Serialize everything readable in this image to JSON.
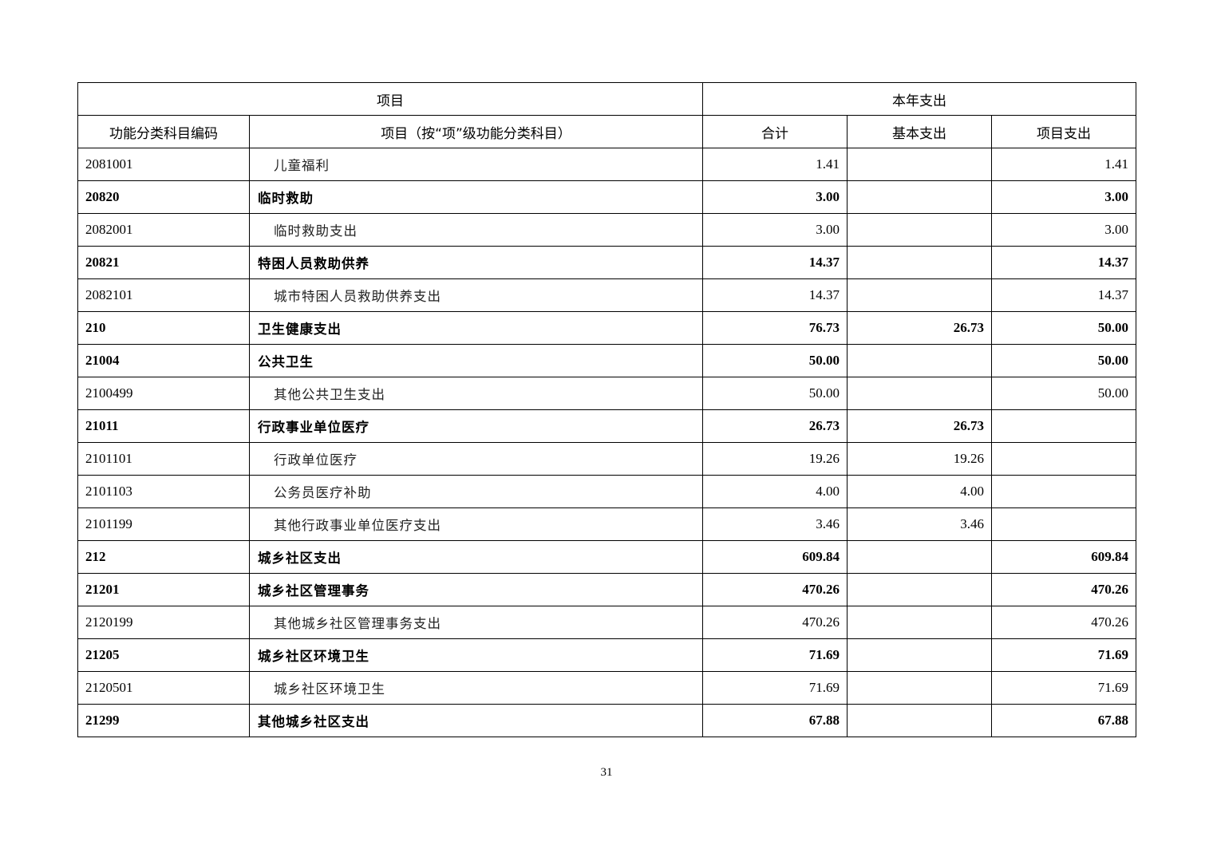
{
  "header": {
    "group_item": "项目",
    "group_expense": "本年支出",
    "col_code": "功能分类科目编码",
    "col_name": "项目（按“项”级功能分类科目）",
    "col_total": "合计",
    "col_basic": "基本支出",
    "col_project": "项目支出"
  },
  "rows": [
    {
      "code": "2081001",
      "name": "儿童福利",
      "total": "1.41",
      "basic": "",
      "project": "1.41",
      "bold": false
    },
    {
      "code": "20820",
      "name": "临时救助",
      "total": "3.00",
      "basic": "",
      "project": "3.00",
      "bold": true
    },
    {
      "code": "2082001",
      "name": "临时救助支出",
      "total": "3.00",
      "basic": "",
      "project": "3.00",
      "bold": false
    },
    {
      "code": "20821",
      "name": "特困人员救助供养",
      "total": "14.37",
      "basic": "",
      "project": "14.37",
      "bold": true
    },
    {
      "code": "2082101",
      "name": "城市特困人员救助供养支出",
      "total": "14.37",
      "basic": "",
      "project": "14.37",
      "bold": false
    },
    {
      "code": "210",
      "name": "卫生健康支出",
      "total": "76.73",
      "basic": "26.73",
      "project": "50.00",
      "bold": true
    },
    {
      "code": "21004",
      "name": "公共卫生",
      "total": "50.00",
      "basic": "",
      "project": "50.00",
      "bold": true
    },
    {
      "code": "2100499",
      "name": "其他公共卫生支出",
      "total": "50.00",
      "basic": "",
      "project": "50.00",
      "bold": false
    },
    {
      "code": "21011",
      "name": "行政事业单位医疗",
      "total": "26.73",
      "basic": "26.73",
      "project": "",
      "bold": true
    },
    {
      "code": "2101101",
      "name": "行政单位医疗",
      "total": "19.26",
      "basic": "19.26",
      "project": "",
      "bold": false
    },
    {
      "code": "2101103",
      "name": "公务员医疗补助",
      "total": "4.00",
      "basic": "4.00",
      "project": "",
      "bold": false
    },
    {
      "code": "2101199",
      "name": "其他行政事业单位医疗支出",
      "total": "3.46",
      "basic": "3.46",
      "project": "",
      "bold": false
    },
    {
      "code": "212",
      "name": "城乡社区支出",
      "total": "609.84",
      "basic": "",
      "project": "609.84",
      "bold": true
    },
    {
      "code": "21201",
      "name": "城乡社区管理事务",
      "total": "470.26",
      "basic": "",
      "project": "470.26",
      "bold": true
    },
    {
      "code": "2120199",
      "name": "其他城乡社区管理事务支出",
      "total": "470.26",
      "basic": "",
      "project": "470.26",
      "bold": false
    },
    {
      "code": "21205",
      "name": "城乡社区环境卫生",
      "total": "71.69",
      "basic": "",
      "project": "71.69",
      "bold": true
    },
    {
      "code": "2120501",
      "name": "城乡社区环境卫生",
      "total": "71.69",
      "basic": "",
      "project": "71.69",
      "bold": false
    },
    {
      "code": "21299",
      "name": "其他城乡社区支出",
      "total": "67.88",
      "basic": "",
      "project": "67.88",
      "bold": true
    }
  ],
  "page_number": "31"
}
